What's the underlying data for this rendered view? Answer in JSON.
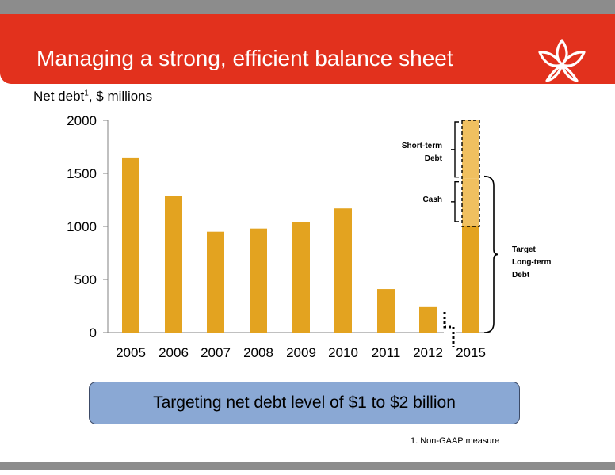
{
  "header": {
    "title": "Managing a strong, efficient balance sheet",
    "logo_icon": "lotus-star-logo-icon"
  },
  "chart_data": {
    "type": "bar",
    "title": "",
    "ylabel_prefix": "Net debt",
    "ylabel_superscript": "1",
    "ylabel_suffix": ", $ millions",
    "xlabel": "",
    "ylim": [
      0,
      2000
    ],
    "yticks": [
      0,
      500,
      1000,
      1500,
      2000
    ],
    "categories": [
      "2005",
      "2006",
      "2007",
      "2008",
      "2009",
      "2010",
      "2011",
      "2012",
      "2015"
    ],
    "values": [
      1650,
      1290,
      950,
      980,
      1040,
      1170,
      410,
      240,
      1000
    ],
    "axis_break_after": "2012",
    "target_stack": {
      "category": "2015",
      "segments": [
        {
          "name": "Cash",
          "from": 1000,
          "to": 1450
        },
        {
          "name": "Short-term Debt",
          "from": 1450,
          "to": 2000
        }
      ]
    },
    "annotations": [
      {
        "text": "Short-term Debt",
        "lines": [
          "Short-term",
          "Debt"
        ],
        "range": [
          1450,
          2000
        ]
      },
      {
        "text": "Cash",
        "lines": [
          "Cash"
        ],
        "range": [
          1000,
          1450
        ]
      },
      {
        "text": "Target Long-term Debt",
        "lines": [
          "Target",
          "Long-term",
          "Debt"
        ],
        "range": [
          0,
          1450
        ]
      }
    ],
    "bar_color": "#e3a320",
    "target_overlay_color": "#f0c060",
    "grid": false,
    "legend": "none"
  },
  "callout": {
    "text": "Targeting net debt level of $1 to $2 billion"
  },
  "footnote": {
    "text": "1.   Non-GAAP measure"
  },
  "colors": {
    "brand_red": "#e2311d",
    "callout_blue": "#8aa8d4",
    "strip_gray": "#8c8c8c"
  }
}
